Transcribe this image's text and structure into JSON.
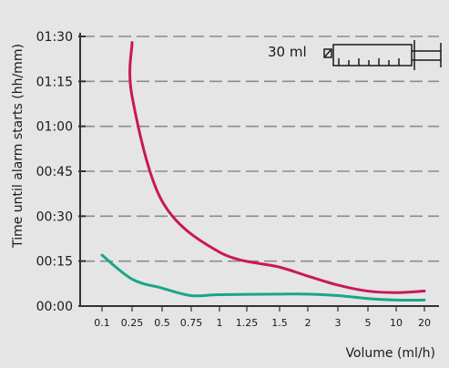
{
  "chart_data": {
    "type": "line",
    "xlabel": "Volume (ml/h)",
    "ylabel": "Time until alarm starts (hh/mm)",
    "x_scale": "categorical",
    "categories": [
      "0.1",
      "0.25",
      "0.5",
      "0.75",
      "1",
      "1.25",
      "1.5",
      "2",
      "3",
      "5",
      "10",
      "20"
    ],
    "y_ticks": [
      "00:00",
      "00:15",
      "00:30",
      "00:45",
      "01:00",
      "01:15",
      "01:30"
    ],
    "ylim_minutes": [
      0,
      90
    ],
    "grid": "horizontal-dashed",
    "annotation": "30 ml",
    "syringe_icon": "syringe-icon",
    "series": [
      {
        "color": "#c8185a",
        "points": [
          {
            "x": "0.25",
            "minutes": 88
          },
          {
            "x": "0.25",
            "minutes": 70
          },
          {
            "x": "0.5",
            "minutes": 35
          },
          {
            "x": "1",
            "minutes": 18
          },
          {
            "x": "1.5",
            "minutes": 13
          },
          {
            "x": "2",
            "minutes": 10
          },
          {
            "x": "3",
            "minutes": 7
          },
          {
            "x": "5",
            "minutes": 5
          },
          {
            "x": "10",
            "minutes": 4.5
          },
          {
            "x": "20",
            "minutes": 5
          }
        ]
      },
      {
        "color": "#1aa58a",
        "points": [
          {
            "x": "0.1",
            "minutes": 17
          },
          {
            "x": "0.25",
            "minutes": 9
          },
          {
            "x": "0.5",
            "minutes": 6
          },
          {
            "x": "0.75",
            "minutes": 3.5
          },
          {
            "x": "1",
            "minutes": 3.8
          },
          {
            "x": "1.5",
            "minutes": 4
          },
          {
            "x": "2",
            "minutes": 4
          },
          {
            "x": "3",
            "minutes": 3.5
          },
          {
            "x": "5",
            "minutes": 2.5
          },
          {
            "x": "10",
            "minutes": 2
          },
          {
            "x": "20",
            "minutes": 2
          }
        ]
      }
    ]
  }
}
